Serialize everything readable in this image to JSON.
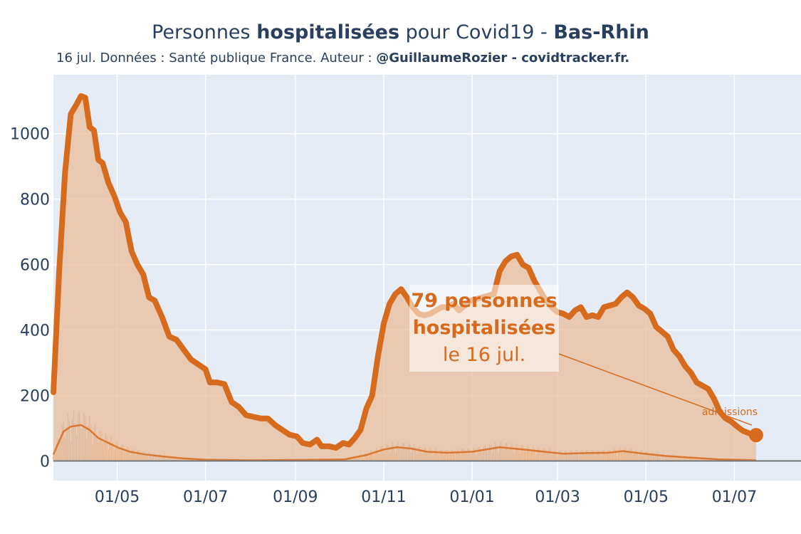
{
  "header": {
    "title_pre": "Personnes ",
    "title_bold1": "hospitalisées",
    "title_mid": " pour Covid19 - ",
    "title_bold2": "Bas-Rhin",
    "subtitle_pre": "16 jul. Données : Santé publique France. Auteur : ",
    "subtitle_bold": "@GuillaumeRozier - covidtracker.fr."
  },
  "annotation": {
    "line1": "79 personnes",
    "line2": "hospitalisées",
    "line3": "le 16 jul.",
    "admissions_label": "admissions"
  },
  "colors": {
    "line": "#d66b1e",
    "fill": "#e9bd9a",
    "plot_bg": "#e5ecf6",
    "grid": "#ffffff",
    "zero_line": "#777777"
  },
  "chart_data": {
    "type": "area",
    "x_axis": {
      "type": "date",
      "range": [
        "2020-03-18",
        "2021-08-16"
      ],
      "tick_labels": [
        "01/05",
        "01/07",
        "01/09",
        "01/11",
        "01/01",
        "01/03",
        "01/05",
        "01/07"
      ],
      "tick_dates": [
        "2020-05-01",
        "2020-07-01",
        "2020-09-01",
        "2020-11-01",
        "2021-01-01",
        "2021-03-01",
        "2021-05-01",
        "2021-07-01"
      ]
    },
    "y_axis": {
      "range": [
        -60,
        1180
      ],
      "tick_values": [
        0,
        200,
        400,
        600,
        800,
        1000
      ],
      "tick_labels": [
        "0",
        "200",
        "400",
        "600",
        "800",
        "1000"
      ],
      "grid": true
    },
    "series": [
      {
        "points": [
          [
            "2020-03-18",
            210
          ],
          [
            "2020-03-22",
            580
          ],
          [
            "2020-03-26",
            880
          ],
          [
            "2020-03-30",
            1060
          ],
          [
            "2020-04-03",
            1090
          ],
          [
            "2020-04-06",
            1115
          ],
          [
            "2020-04-09",
            1110
          ],
          [
            "2020-04-12",
            1020
          ],
          [
            "2020-04-15",
            1010
          ],
          [
            "2020-04-18",
            920
          ],
          [
            "2020-04-21",
            910
          ],
          [
            "2020-04-25",
            850
          ],
          [
            "2020-04-29",
            810
          ],
          [
            "2020-05-03",
            760
          ],
          [
            "2020-05-07",
            730
          ],
          [
            "2020-05-11",
            640
          ],
          [
            "2020-05-15",
            600
          ],
          [
            "2020-05-19",
            570
          ],
          [
            "2020-05-23",
            500
          ],
          [
            "2020-05-27",
            490
          ],
          [
            "2020-06-01",
            440
          ],
          [
            "2020-06-06",
            380
          ],
          [
            "2020-06-11",
            370
          ],
          [
            "2020-06-16",
            340
          ],
          [
            "2020-06-21",
            310
          ],
          [
            "2020-06-26",
            295
          ],
          [
            "2020-07-01",
            280
          ],
          [
            "2020-07-04",
            240
          ],
          [
            "2020-07-09",
            240
          ],
          [
            "2020-07-14",
            235
          ],
          [
            "2020-07-19",
            180
          ],
          [
            "2020-07-24",
            165
          ],
          [
            "2020-07-29",
            140
          ],
          [
            "2020-08-03",
            135
          ],
          [
            "2020-08-08",
            130
          ],
          [
            "2020-08-13",
            130
          ],
          [
            "2020-08-18",
            110
          ],
          [
            "2020-08-23",
            95
          ],
          [
            "2020-08-28",
            80
          ],
          [
            "2020-09-02",
            75
          ],
          [
            "2020-09-06",
            55
          ],
          [
            "2020-09-11",
            50
          ],
          [
            "2020-09-16",
            65
          ],
          [
            "2020-09-19",
            45
          ],
          [
            "2020-09-24",
            45
          ],
          [
            "2020-09-29",
            40
          ],
          [
            "2020-10-04",
            55
          ],
          [
            "2020-10-08",
            50
          ],
          [
            "2020-10-12",
            70
          ],
          [
            "2020-10-16",
            95
          ],
          [
            "2020-10-20",
            160
          ],
          [
            "2020-10-24",
            200
          ],
          [
            "2020-10-28",
            320
          ],
          [
            "2020-11-01",
            420
          ],
          [
            "2020-11-05",
            480
          ],
          [
            "2020-11-09",
            510
          ],
          [
            "2020-11-13",
            525
          ],
          [
            "2020-11-17",
            500
          ],
          [
            "2020-11-21",
            470
          ],
          [
            "2020-11-25",
            450
          ],
          [
            "2020-11-29",
            445
          ],
          [
            "2020-12-03",
            450
          ],
          [
            "2020-12-07",
            460
          ],
          [
            "2020-12-11",
            470
          ],
          [
            "2020-12-15",
            470
          ],
          [
            "2020-12-19",
            480
          ],
          [
            "2020-12-23",
            460
          ],
          [
            "2020-12-27",
            475
          ],
          [
            "2020-12-31",
            490
          ],
          [
            "2021-01-04",
            495
          ],
          [
            "2021-01-08",
            500
          ],
          [
            "2021-01-12",
            505
          ],
          [
            "2021-01-16",
            510
          ],
          [
            "2021-01-20",
            580
          ],
          [
            "2021-01-24",
            610
          ],
          [
            "2021-01-28",
            625
          ],
          [
            "2021-02-01",
            630
          ],
          [
            "2021-02-05",
            600
          ],
          [
            "2021-02-09",
            590
          ],
          [
            "2021-02-13",
            550
          ],
          [
            "2021-02-17",
            520
          ],
          [
            "2021-02-21",
            490
          ],
          [
            "2021-02-25",
            470
          ],
          [
            "2021-03-01",
            455
          ],
          [
            "2021-03-05",
            450
          ],
          [
            "2021-03-09",
            440
          ],
          [
            "2021-03-13",
            460
          ],
          [
            "2021-03-17",
            470
          ],
          [
            "2021-03-21",
            440
          ],
          [
            "2021-03-25",
            445
          ],
          [
            "2021-03-29",
            440
          ],
          [
            "2021-04-02",
            470
          ],
          [
            "2021-04-06",
            475
          ],
          [
            "2021-04-10",
            480
          ],
          [
            "2021-04-14",
            500
          ],
          [
            "2021-04-18",
            515
          ],
          [
            "2021-04-22",
            500
          ],
          [
            "2021-04-26",
            475
          ],
          [
            "2021-04-30",
            465
          ],
          [
            "2021-05-04",
            450
          ],
          [
            "2021-05-08",
            410
          ],
          [
            "2021-05-12",
            395
          ],
          [
            "2021-05-16",
            380
          ],
          [
            "2021-05-20",
            340
          ],
          [
            "2021-05-24",
            320
          ],
          [
            "2021-05-28",
            290
          ],
          [
            "2021-06-01",
            270
          ],
          [
            "2021-06-05",
            240
          ],
          [
            "2021-06-09",
            230
          ],
          [
            "2021-06-13",
            220
          ],
          [
            "2021-06-17",
            190
          ],
          [
            "2021-06-21",
            150
          ],
          [
            "2021-06-25",
            130
          ],
          [
            "2021-06-29",
            120
          ],
          [
            "2021-07-03",
            105
          ],
          [
            "2021-07-07",
            92
          ],
          [
            "2021-07-11",
            85
          ],
          [
            "2021-07-16",
            79
          ]
        ]
      },
      {
        "name": "admissions",
        "points": [
          [
            "2020-03-18",
            20
          ],
          [
            "2020-03-25",
            90
          ],
          [
            "2020-03-30",
            105
          ],
          [
            "2020-04-06",
            110
          ],
          [
            "2020-04-12",
            95
          ],
          [
            "2020-04-18",
            70
          ],
          [
            "2020-04-25",
            55
          ],
          [
            "2020-05-02",
            40
          ],
          [
            "2020-05-10",
            28
          ],
          [
            "2020-05-20",
            20
          ],
          [
            "2020-06-01",
            14
          ],
          [
            "2020-06-15",
            8
          ],
          [
            "2020-07-01",
            4
          ],
          [
            "2020-08-01",
            2
          ],
          [
            "2020-09-01",
            3
          ],
          [
            "2020-09-20",
            4
          ],
          [
            "2020-10-05",
            5
          ],
          [
            "2020-10-20",
            18
          ],
          [
            "2020-11-01",
            35
          ],
          [
            "2020-11-10",
            42
          ],
          [
            "2020-11-20",
            38
          ],
          [
            "2020-12-01",
            28
          ],
          [
            "2020-12-15",
            25
          ],
          [
            "2021-01-01",
            28
          ],
          [
            "2021-01-20",
            42
          ],
          [
            "2021-02-05",
            35
          ],
          [
            "2021-02-20",
            28
          ],
          [
            "2021-03-05",
            22
          ],
          [
            "2021-03-20",
            24
          ],
          [
            "2021-04-05",
            25
          ],
          [
            "2021-04-15",
            30
          ],
          [
            "2021-04-30",
            22
          ],
          [
            "2021-05-15",
            15
          ],
          [
            "2021-06-01",
            10
          ],
          [
            "2021-06-20",
            5
          ],
          [
            "2021-07-16",
            2
          ]
        ]
      }
    ],
    "last_point": [
      "2021-07-16",
      79
    ],
    "legend": "none"
  }
}
